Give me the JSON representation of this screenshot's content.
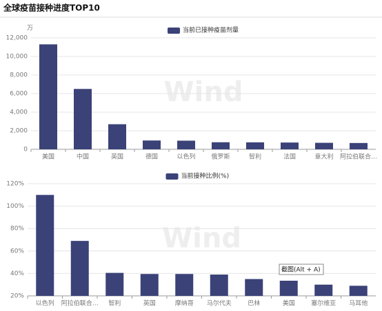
{
  "page_title": "全球疫苗接种进度TOP10",
  "tooltip": "截图(Alt + A)",
  "watermark": "Wind",
  "chart_data": [
    {
      "type": "bar",
      "y_unit": "万",
      "color": "#3b4278",
      "grid": true,
      "categories": [
        "美国",
        "中国",
        "英国",
        "德国",
        "以色列",
        "俄罗斯",
        "智利",
        "法国",
        "意大利",
        "阿拉伯联合…"
      ],
      "series": [
        {
          "name": "当前已接种疫苗剂量",
          "color": "#3b4278",
          "values": [
            11300,
            6500,
            2700,
            950,
            930,
            760,
            750,
            730,
            700,
            680
          ]
        }
      ],
      "ylim": [
        0,
        12000
      ],
      "yticks": [
        0,
        {
          "value": 2000,
          "label": "2,000"
        },
        {
          "value": 4000,
          "label": "4,000"
        },
        {
          "value": 6000,
          "label": "6,000"
        },
        {
          "value": 8000,
          "label": "8,000"
        },
        {
          "value": 10000,
          "label": "10,000"
        },
        {
          "value": 12000,
          "label": "12,000"
        }
      ]
    },
    {
      "type": "bar",
      "color": "#3b4278",
      "grid": true,
      "categories": [
        "以色列",
        "阿拉伯联合…",
        "智利",
        "英国",
        "摩纳哥",
        "马尔代夫",
        "巴林",
        "美国",
        "塞尔维亚",
        "马耳他"
      ],
      "series": [
        {
          "name": "当前接种比例(%)",
          "color": "#3b4278",
          "values": [
            110,
            69,
            40.5,
            39.5,
            39.5,
            39,
            35,
            33.5,
            30,
            29
          ]
        }
      ],
      "ylim": [
        20,
        120
      ],
      "yticks": [
        {
          "value": 20,
          "label": "20%"
        },
        {
          "value": 40,
          "label": "40%"
        },
        {
          "value": 60,
          "label": "60%"
        },
        {
          "value": 80,
          "label": "80%"
        },
        {
          "value": 100,
          "label": "100%"
        },
        {
          "value": 120,
          "label": "120%"
        }
      ]
    }
  ]
}
